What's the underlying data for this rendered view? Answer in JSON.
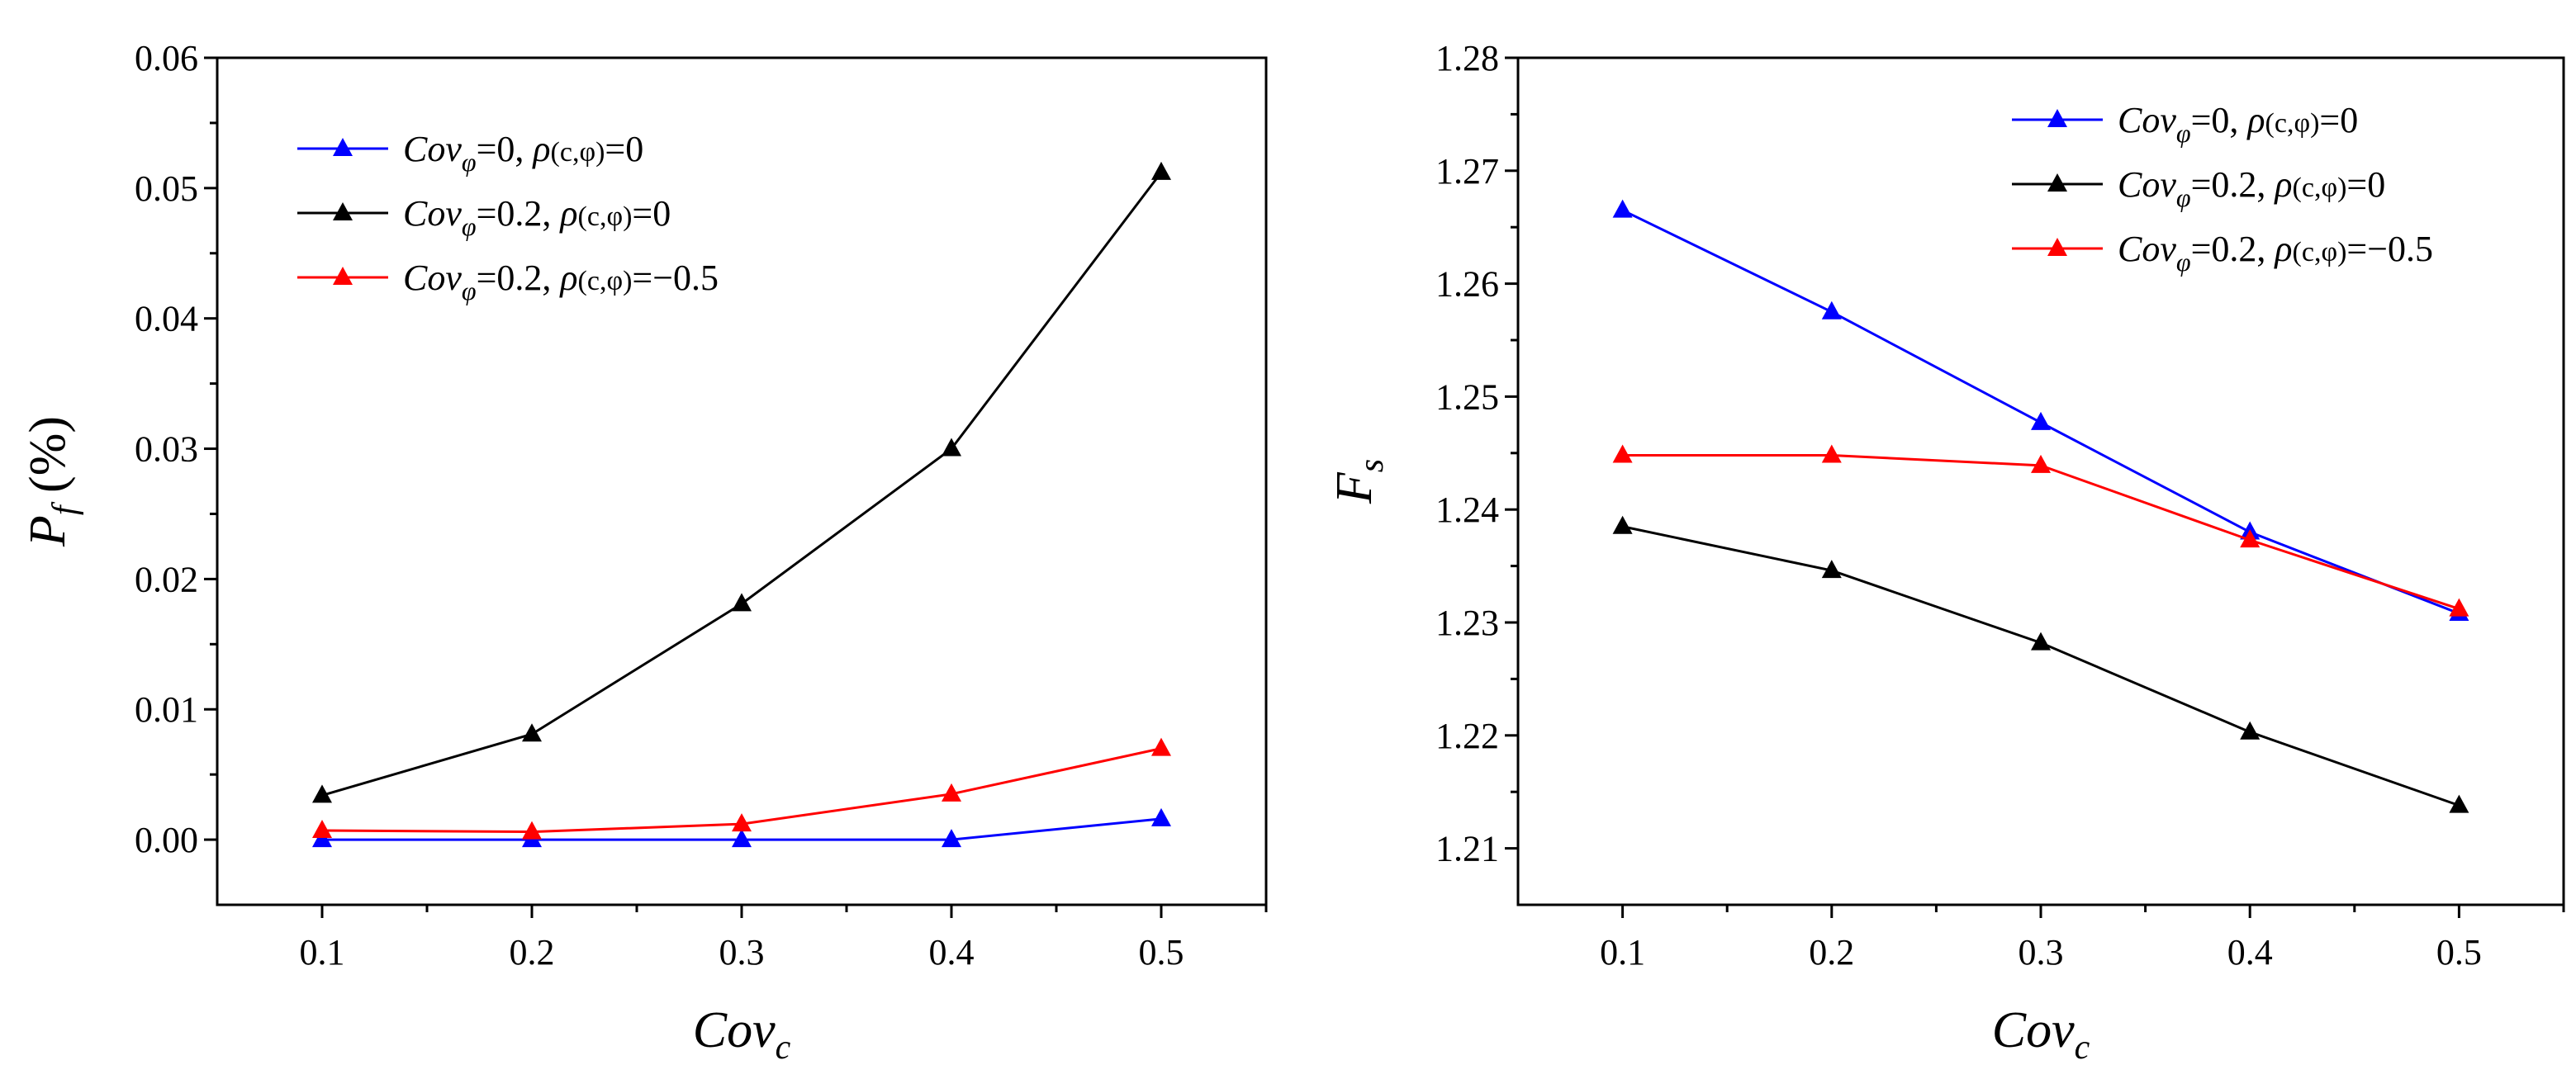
{
  "chart_data": [
    {
      "type": "line",
      "x": [
        0.1,
        0.2,
        0.3,
        0.4,
        0.5
      ],
      "xlim": [
        0.05,
        0.55
      ],
      "ylim": [
        -0.005,
        0.06
      ],
      "xticks": [
        "0.1",
        "0.2",
        "0.3",
        "0.4",
        "0.5"
      ],
      "yticks": [
        "0.00",
        "0.01",
        "0.02",
        "0.03",
        "0.04",
        "0.05",
        "0.06"
      ],
      "xlabel": {
        "main": "Cov",
        "sub": "c"
      },
      "ylabel": {
        "main": "P",
        "sub": "f",
        "suffix": " (%)"
      },
      "legend_position": "top-left",
      "series": [
        {
          "label": "Covφ=0,  ρ(c,φ)=0",
          "legend": {
            "cov": "Cov",
            "phi": "φ",
            "cov_val": "=0,  ",
            "rho": "ρ",
            "rho_args": "(c,φ)",
            "rho_val": "=0"
          },
          "color": "#0000ff",
          "values": [
            0.0,
            0.0,
            0.0,
            0.0,
            0.0016
          ]
        },
        {
          "label": "Covφ=0.2,  ρ(c,φ)=0",
          "legend": {
            "cov": "Cov",
            "phi": "φ",
            "cov_val": "=0.2,  ",
            "rho": "ρ",
            "rho_args": "(c,φ)",
            "rho_val": "=0"
          },
          "color": "#000000",
          "values": [
            0.0034,
            0.0081,
            0.0181,
            0.03,
            0.0512
          ]
        },
        {
          "label": "Covφ=0.2,  ρ(c,φ)=−0.5",
          "legend": {
            "cov": "Cov",
            "phi": "φ",
            "cov_val": "=0.2,  ",
            "rho": "ρ",
            "rho_args": "(c,φ)",
            "rho_val": "=−0.5"
          },
          "color": "#ff0000",
          "values": [
            0.0007,
            0.0006,
            0.0012,
            0.0035,
            0.007
          ]
        }
      ]
    },
    {
      "type": "line",
      "x": [
        0.1,
        0.2,
        0.3,
        0.4,
        0.5
      ],
      "xlim": [
        0.05,
        0.55
      ],
      "ylim": [
        1.205,
        1.28
      ],
      "xticks": [
        "0.1",
        "0.2",
        "0.3",
        "0.4",
        "0.5"
      ],
      "yticks": [
        "1.21",
        "1.22",
        "1.23",
        "1.24",
        "1.25",
        "1.26",
        "1.27",
        "1.28"
      ],
      "xlabel": {
        "main": "Cov",
        "sub": "c"
      },
      "ylabel": {
        "main": "F",
        "sub": "s",
        "suffix": ""
      },
      "legend_position": "top-right",
      "series": [
        {
          "label": "Covφ=0,  ρ(c,φ)=0",
          "legend": {
            "cov": "Cov",
            "phi": "φ",
            "cov_val": "=0,  ",
            "rho": "ρ",
            "rho_args": "(c,φ)",
            "rho_val": "=0"
          },
          "color": "#0000ff",
          "values": [
            1.2665,
            1.2575,
            1.2477,
            1.238,
            1.2308
          ]
        },
        {
          "label": "Covφ=0.2,  ρ(c,φ)=0",
          "legend": {
            "cov": "Cov",
            "phi": "φ",
            "cov_val": "=0.2,  ",
            "rho": "ρ",
            "rho_args": "(c,φ)",
            "rho_val": "=0"
          },
          "color": "#000000",
          "values": [
            1.2385,
            1.2346,
            1.2282,
            1.2203,
            1.2138
          ]
        },
        {
          "label": "Covφ=0.2,  ρ(c,φ)=−0.5",
          "legend": {
            "cov": "Cov",
            "phi": "φ",
            "cov_val": "=0.2,  ",
            "rho": "ρ",
            "rho_args": "(c,φ)",
            "rho_val": "=−0.5"
          },
          "color": "#ff0000",
          "values": [
            1.2448,
            1.2448,
            1.2439,
            1.2373,
            1.2312
          ]
        }
      ]
    }
  ]
}
